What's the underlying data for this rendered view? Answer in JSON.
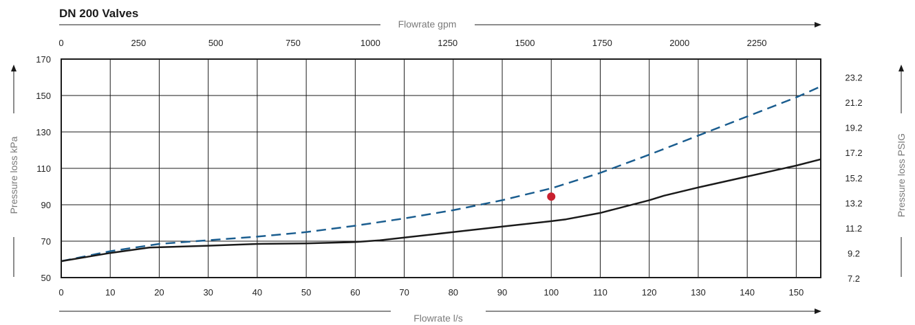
{
  "title": "DN 200 Valves",
  "chart_data": {
    "type": "line",
    "title": "DN 200 Valves",
    "xlabel": "Flowrate l/s",
    "x2label": "Flowrate gpm",
    "ylabel": "Pressure loss kPa",
    "y2label": "Pressure loss PSIG",
    "xlim": [
      0,
      155
    ],
    "ylim": [
      50,
      170
    ],
    "x_ticks": [
      0,
      10,
      20,
      30,
      40,
      50,
      60,
      70,
      80,
      90,
      100,
      110,
      120,
      130,
      140,
      150
    ],
    "x_tick_labels": [
      "0",
      "10",
      "20",
      "30",
      "40",
      "50",
      "60",
      "70",
      "80",
      "90",
      "100",
      "110",
      "120",
      "130",
      "140",
      "150"
    ],
    "y_ticks": [
      50,
      70,
      90,
      110,
      130,
      150,
      170
    ],
    "y_tick_labels": [
      "50",
      "70",
      "90",
      "110",
      "130",
      "150",
      "170"
    ],
    "x2_ticks": [
      0,
      250,
      500,
      750,
      1000,
      1250,
      1500,
      1750,
      2000,
      2250
    ],
    "x2_tick_labels": [
      "0",
      "250",
      "500",
      "750",
      "1000",
      "1250",
      "1500",
      "1750",
      "2000",
      "2250"
    ],
    "x2_scale": 15.8503,
    "y2_ticks": [
      7.2,
      9.2,
      11.2,
      13.2,
      15.2,
      17.2,
      19.2,
      21.2,
      23.2
    ],
    "y2_tick_labels": [
      "7.2",
      "9.2",
      "11.2",
      "13.2",
      "15.2",
      "17.2",
      "19.2",
      "21.2",
      "23.2"
    ],
    "y2_scale": 0.145038,
    "grid": true,
    "series": [
      {
        "style": "dashed",
        "color": "#1a5d8f",
        "x": [
          0,
          10,
          20,
          30,
          40,
          50,
          60,
          70,
          80,
          90,
          100,
          110,
          120,
          130,
          140,
          150,
          155
        ],
        "y": [
          59,
          64.5,
          68.5,
          70.5,
          72.5,
          75,
          78.5,
          82.5,
          87,
          92.5,
          99,
          107.5,
          117.5,
          128,
          138.5,
          149,
          155
        ]
      },
      {
        "style": "solid",
        "color": "#1a1a1a",
        "x": [
          0,
          10,
          18,
          30,
          40,
          50,
          60,
          65,
          70,
          80,
          90,
          100,
          103,
          110,
          120,
          123,
          130,
          140,
          150,
          155
        ],
        "y": [
          59,
          63.5,
          66.5,
          67.5,
          68.5,
          68.8,
          69.5,
          70.5,
          72,
          75,
          78,
          81,
          82,
          85.5,
          92.5,
          95,
          99.5,
          105.5,
          111.5,
          115
        ]
      }
    ],
    "points": [
      {
        "x": 100,
        "y": 94.5,
        "color": "#c8202e"
      }
    ]
  }
}
